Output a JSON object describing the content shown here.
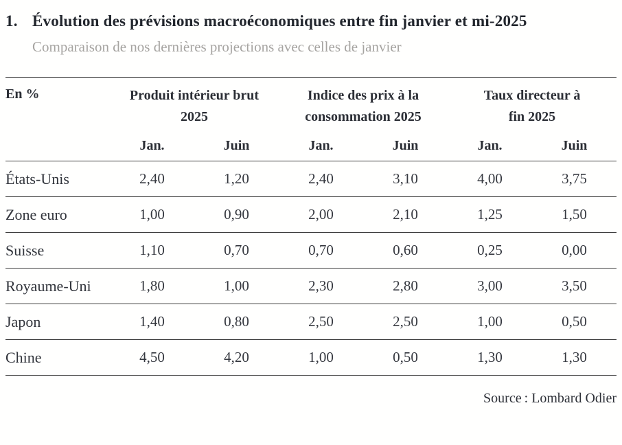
{
  "header": {
    "index": "1.",
    "title": "Évolution des prévisions macroéconomiques entre fin janvier et mi-2025",
    "subtitle": "Comparaison de nos dernières projections avec celles de janvier"
  },
  "chart_data": {
    "type": "table",
    "title": "Évolution des prévisions macroéconomiques entre fin janvier et mi-2025",
    "subtitle": "Comparaison de nos dernières projections avec celles de janvier",
    "corner_label": "En %",
    "column_groups": [
      {
        "label": "Produit intérieur brut 2025",
        "columns": [
          "Jan.",
          "Juin"
        ]
      },
      {
        "label": "Indice des prix à la consommation 2025",
        "columns": [
          "Jan.",
          "Juin"
        ]
      },
      {
        "label": "Taux directeur à fin 2025",
        "columns": [
          "Jan.",
          "Juin"
        ]
      }
    ],
    "rows": [
      {
        "label": "États-Unis",
        "values": [
          "2,40",
          "1,20",
          "2,40",
          "3,10",
          "4,00",
          "3,75"
        ]
      },
      {
        "label": "Zone euro",
        "values": [
          "1,00",
          "0,90",
          "2,00",
          "2,10",
          "1,25",
          "1,50"
        ]
      },
      {
        "label": "Suisse",
        "values": [
          "1,10",
          "0,70",
          "0,70",
          "0,60",
          "0,25",
          "0,00"
        ]
      },
      {
        "label": "Royaume-Uni",
        "values": [
          "1,80",
          "1,00",
          "2,30",
          "2,80",
          "3,00",
          "3,50"
        ]
      },
      {
        "label": "Japon",
        "values": [
          "1,40",
          "0,80",
          "2,50",
          "2,50",
          "1,00",
          "0,50"
        ]
      },
      {
        "label": "Chine",
        "values": [
          "4,50",
          "4,20",
          "1,00",
          "0,50",
          "1,30",
          "1,30"
        ]
      }
    ],
    "source": "Source : Lombard Odier"
  },
  "colors": {
    "background": "#fffffe",
    "title_text": "#22262d",
    "table_text": "#31343b",
    "subtitle_muted": "#a6a4a1",
    "rule": "#3c3c3c"
  }
}
